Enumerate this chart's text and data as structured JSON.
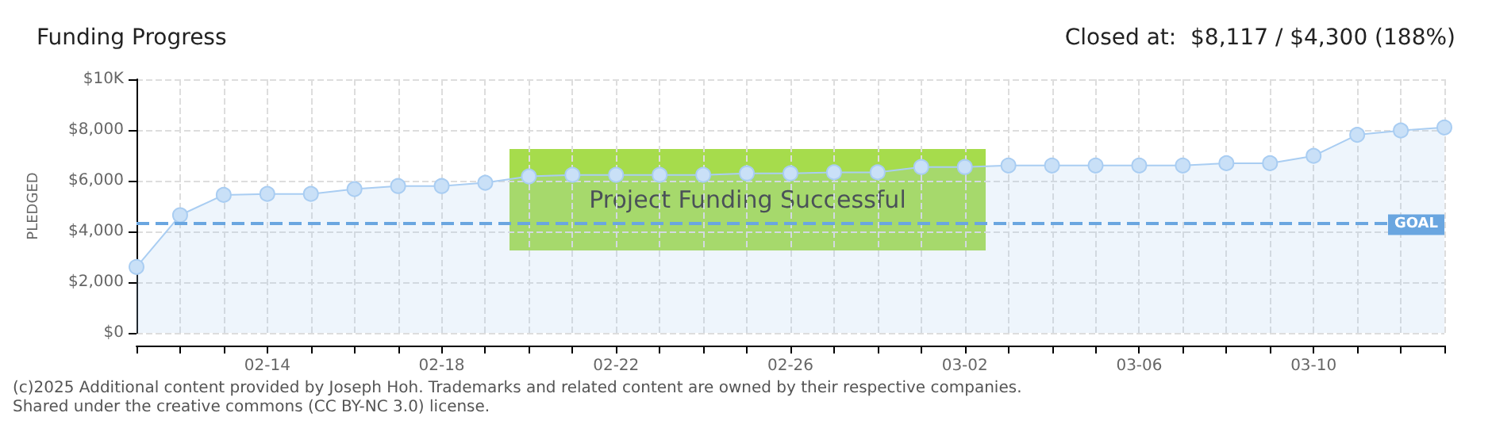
{
  "chart_data": {
    "type": "area",
    "title": "Funding Progress",
    "subtitle": "Closed at:  $8,117 / $4,300 (188%)",
    "ylabel": "PLEDGED",
    "categories": [
      null,
      null,
      null,
      "02-14",
      null,
      null,
      null,
      "02-18",
      null,
      null,
      null,
      "02-22",
      null,
      null,
      null,
      "02-26",
      null,
      null,
      null,
      "03-02",
      null,
      null,
      null,
      "03-06",
      null,
      null,
      null,
      "03-10",
      null,
      null,
      null
    ],
    "series": [
      {
        "color": "#a9cdf2",
        "values": [
          2600,
          4640,
          5440,
          5480,
          5480,
          5670,
          5790,
          5790,
          5920,
          6170,
          6230,
          6230,
          6230,
          6230,
          6290,
          6290,
          6330,
          6330,
          6540,
          6540,
          6600,
          6600,
          6600,
          6600,
          6600,
          6690,
          6690,
          6980,
          7810,
          7980,
          8100
        ]
      }
    ],
    "ylim": [
      0,
      10000
    ],
    "yticks": [
      {
        "value": 0,
        "label": "$0"
      },
      {
        "value": 2000,
        "label": "$2,000"
      },
      {
        "value": 4000,
        "label": "$4,000"
      },
      {
        "value": 6000,
        "label": "$6,000"
      },
      {
        "value": 8000,
        "label": "$8,000"
      },
      {
        "value": 10000,
        "label": "$10K"
      }
    ],
    "grid": true,
    "marker": "circle",
    "line_style": "solid",
    "ref_lines": [
      {
        "axis": "y",
        "value": 4300,
        "label": "GOAL",
        "color": "#6aa6e0",
        "line_style": "dashed"
      }
    ],
    "annotations": [
      "Project Funding Successful",
      "(c)2025 Additional content provided by Joseph Hoh. Trademarks and related content are owned by their respective companies.",
      "Shared under the creative commons (CC BY-NC 3.0) license."
    ]
  }
}
